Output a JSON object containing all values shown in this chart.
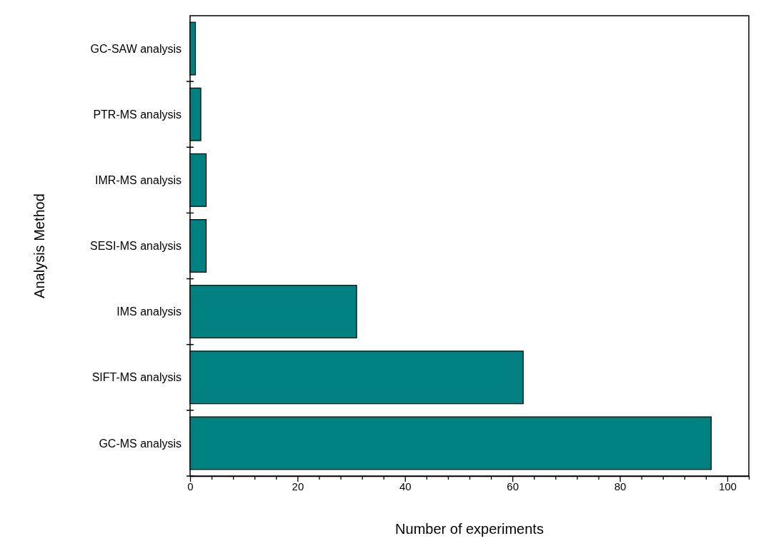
{
  "chart_data": {
    "type": "bar",
    "orientation": "horizontal",
    "xlabel": "Number of experiments",
    "ylabel": "Analysis Method",
    "categories": [
      "GC-SAW analysis",
      "PTR-MS analysis",
      "IMR-MS analysis",
      "SESI-MS analysis",
      "IMS analysis",
      "SIFT-MS analysis",
      "GC-MS analysis"
    ],
    "values": [
      1,
      2,
      3,
      3,
      31,
      62,
      97
    ],
    "color": "#008080",
    "xlim": [
      0,
      104
    ],
    "xticks": [
      0,
      {
        "value": 4,
        "label": null
      },
      {
        "value": 8,
        "label": null
      },
      {
        "value": 12,
        "label": null
      },
      {
        "value": 16,
        "label": null
      },
      20,
      {
        "value": 24,
        "label": null
      },
      {
        "value": 28,
        "label": null
      },
      {
        "value": 32,
        "label": null
      },
      {
        "value": 36,
        "label": null
      },
      40,
      {
        "value": 44,
        "label": null
      },
      {
        "value": 48,
        "label": null
      },
      {
        "value": 52,
        "label": null
      },
      {
        "value": 56,
        "label": null
      },
      60,
      {
        "value": 64,
        "label": null
      },
      {
        "value": 68,
        "label": null
      },
      {
        "value": 72,
        "label": null
      },
      {
        "value": 76,
        "label": null
      },
      80,
      {
        "value": 84,
        "label": null
      },
      {
        "value": 88,
        "label": null
      },
      {
        "value": 92,
        "label": null
      },
      {
        "value": 96,
        "label": null
      },
      100,
      {
        "value": 104,
        "label": null
      }
    ],
    "grid": false
  }
}
